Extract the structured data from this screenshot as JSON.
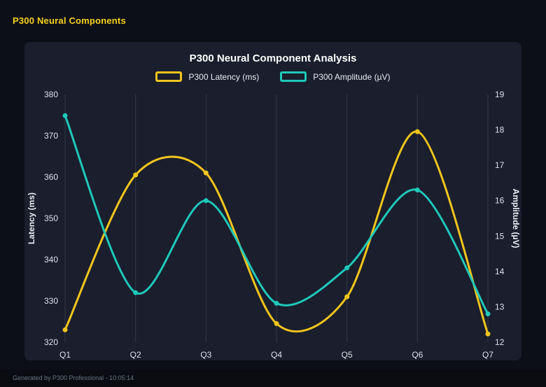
{
  "header": {
    "title": "P300 Neural Components"
  },
  "footer": {
    "text": "Generated by P300 Professional - 10:05:14"
  },
  "colors": {
    "page_background": "#0d0f18",
    "panel_background": "#1a1e2d",
    "header_text": "#f8d21a",
    "latency": "#f2c51d",
    "amplitude": "#1fc8b9",
    "grid": "rgba(255,255,255,0.12)"
  },
  "chart_data": {
    "type": "line",
    "title": "P300 Neural Component Analysis",
    "categories": [
      "Q1",
      "Q2",
      "Q3",
      "Q4",
      "Q5",
      "Q6",
      "Q7"
    ],
    "series": [
      {
        "name": "P300 Latency (ms)",
        "axis": "left",
        "color": "#f2c51d",
        "values": [
          323,
          360.5,
          361,
          324.5,
          331,
          371,
          322
        ]
      },
      {
        "name": "P300 Amplitude (µV)",
        "axis": "right",
        "color": "#1fc8b9",
        "values": [
          18.4,
          13.4,
          16.0,
          13.1,
          14.1,
          16.3,
          12.8
        ]
      }
    ],
    "left_axis": {
      "label": "Latency (ms)",
      "min": 320,
      "max": 380,
      "ticks": [
        320,
        330,
        340,
        350,
        360,
        370,
        380
      ]
    },
    "right_axis": {
      "label": "Amplitude (µV)",
      "min": 12,
      "max": 19,
      "ticks": [
        12,
        13,
        14,
        15,
        16,
        17,
        18,
        19
      ]
    },
    "grid": "vertical",
    "legend_position": "top"
  }
}
